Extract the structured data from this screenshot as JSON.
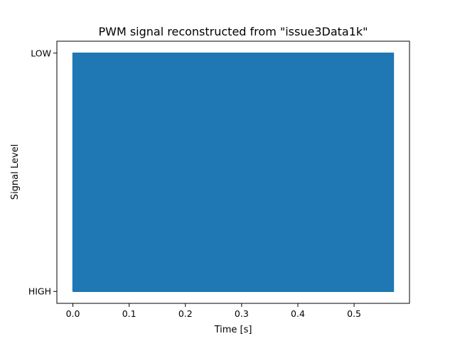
{
  "chart_data": {
    "type": "line",
    "title": "PWM signal reconstructed from \"issue3Data1k\"",
    "xlabel": "Time [s]",
    "ylabel": "Signal Level",
    "xlim": [
      -0.0285,
      0.5985
    ],
    "ylim": [
      -0.05,
      1.05
    ],
    "x_ticks": [
      0.0,
      0.1,
      0.2,
      0.3,
      0.4,
      0.5
    ],
    "x_tick_labels": [
      "0.0",
      "0.1",
      "0.2",
      "0.3",
      "0.4",
      "0.5"
    ],
    "y_ticks": [
      0,
      1
    ],
    "y_tick_labels": [
      "HIGH",
      "LOW"
    ],
    "grid": false,
    "series": [
      {
        "color": "#1f77b4",
        "x_range": [
          0.0,
          0.57
        ],
        "levels": [
          0,
          1
        ],
        "note": "square wave switching rapidly between HIGH and LOW across the full time range"
      }
    ]
  }
}
